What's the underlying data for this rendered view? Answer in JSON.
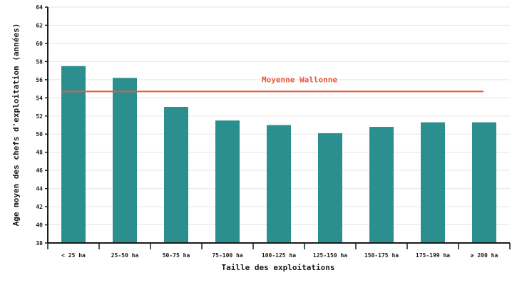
{
  "chart_data": {
    "type": "bar",
    "categories": [
      "< 25 ha",
      "25-50 ha",
      "50-75 ha",
      "75-100 ha",
      "100-125 ha",
      "125-150 ha",
      "150-175 ha",
      "175-199 ha",
      "≥ 200 ha"
    ],
    "values": [
      57.5,
      56.2,
      53.0,
      51.5,
      51.0,
      50.1,
      50.8,
      51.3,
      51.3
    ],
    "xlabel": "Taille des exploitations",
    "ylabel": "Age moyen des chefs d'exploitation (années)",
    "ylim": [
      38,
      64
    ],
    "yticks": [
      38,
      40,
      42,
      44,
      46,
      48,
      50,
      52,
      54,
      56,
      58,
      60,
      62,
      64
    ],
    "grid": true,
    "reference_line": {
      "label": "Moyenne Wallonne",
      "value": 54.7
    },
    "colors": {
      "bar": "#2c8f8f",
      "reference": "#e8593a",
      "grid": "#e6e6e6",
      "axis": "#1a1a1a"
    }
  }
}
